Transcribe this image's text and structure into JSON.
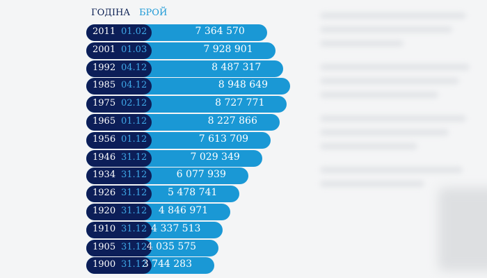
{
  "header": {
    "year_label": "ГОДІНА",
    "count_label": "БРОЙ"
  },
  "colors": {
    "year_pill": "#0c1e58",
    "bar": "#1a98d5",
    "date_text": "#3fa9e8",
    "header_year": "#0b1f52",
    "header_count": "#1e9ad6"
  },
  "chart_data": {
    "type": "bar",
    "orientation": "horizontal",
    "title": "",
    "xlabel": "",
    "ylabel": "",
    "grid": false,
    "rows": [
      {
        "year": "2011",
        "date": "01.02",
        "value_label": "7 364 570",
        "value": 7364570
      },
      {
        "year": "2001",
        "date": "01.03",
        "value_label": "7 928 901",
        "value": 7928901
      },
      {
        "year": "1992",
        "date": "04.12",
        "value_label": "8 487 317",
        "value": 8487317
      },
      {
        "year": "1985",
        "date": "04.12",
        "value_label": "8 948 649",
        "value": 8948649
      },
      {
        "year": "1975",
        "date": "02.12",
        "value_label": "8 727 771",
        "value": 8727771
      },
      {
        "year": "1965",
        "date": "01.12",
        "value_label": "8 227 866",
        "value": 8227866
      },
      {
        "year": "1956",
        "date": "01.12",
        "value_label": "7 613 709",
        "value": 7613709
      },
      {
        "year": "1946",
        "date": "31.12",
        "value_label": "7 029 349",
        "value": 7029349
      },
      {
        "year": "1934",
        "date": "31.12",
        "value_label": "6 077 939",
        "value": 6077939
      },
      {
        "year": "1926",
        "date": "31.12",
        "value_label": "5 478 741",
        "value": 5478741
      },
      {
        "year": "1920",
        "date": "31.12",
        "value_label": "4 846 971",
        "value": 4846971
      },
      {
        "year": "1910",
        "date": "31.12",
        "value_label": "4 337 513",
        "value": 4337513
      },
      {
        "year": "1905",
        "date": "31.12",
        "value_label": "4 035 575",
        "value": 4035575
      },
      {
        "year": "1900",
        "date": "31.12",
        "value_label": "3 744 283",
        "value": 3744283
      }
    ]
  }
}
